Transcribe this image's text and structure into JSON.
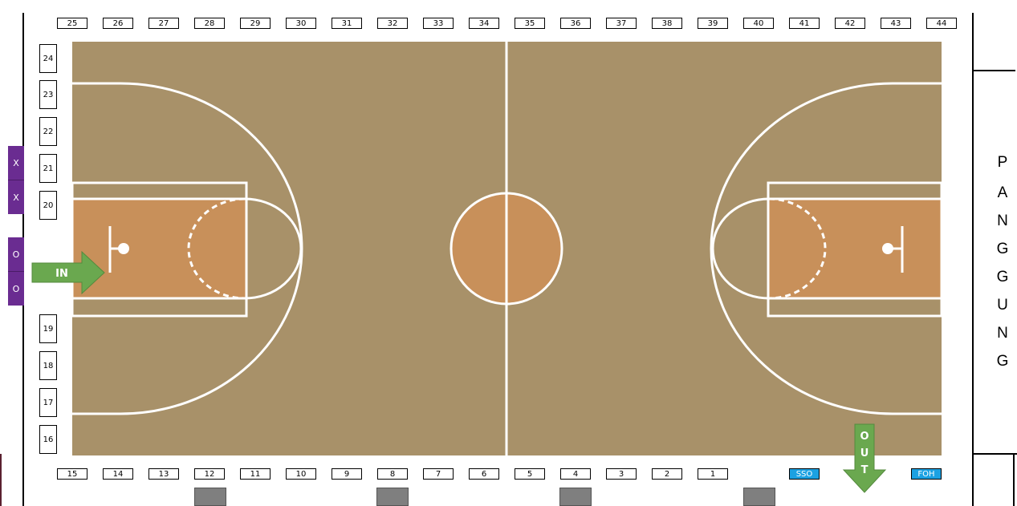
{
  "booths_top": [
    "25",
    "26",
    "27",
    "28",
    "29",
    "30",
    "31",
    "32",
    "33",
    "34",
    "35",
    "36",
    "37",
    "38",
    "39",
    "40",
    "41",
    "42",
    "43",
    "44"
  ],
  "booths_bottom": [
    "15",
    "14",
    "13",
    "12",
    "11",
    "10",
    "9",
    "8",
    "7",
    "6",
    "5",
    "4",
    "3",
    "2",
    "1"
  ],
  "booths_left_upper": [
    "24",
    "23",
    "22",
    "21",
    "20"
  ],
  "booths_left_lower": [
    "19",
    "18",
    "17",
    "16"
  ],
  "special_booths": {
    "sso": "SSO",
    "foh": "FOH"
  },
  "side_markers": {
    "x1": "X",
    "x2": "X",
    "o1": "O",
    "o2": "O"
  },
  "stage": {
    "letters": [
      "P",
      "A",
      "N",
      "G",
      "G",
      "U",
      "N",
      "G"
    ]
  },
  "arrows": {
    "in_label": "IN",
    "out_letters": [
      "O",
      "U",
      "T"
    ]
  },
  "colors": {
    "court": "#a89169",
    "paint": "#c8905a",
    "purple": "#6a2c91",
    "blue": "#1ba1e2",
    "arrow": "#6aa84f",
    "gray": "#7f7f7f"
  }
}
